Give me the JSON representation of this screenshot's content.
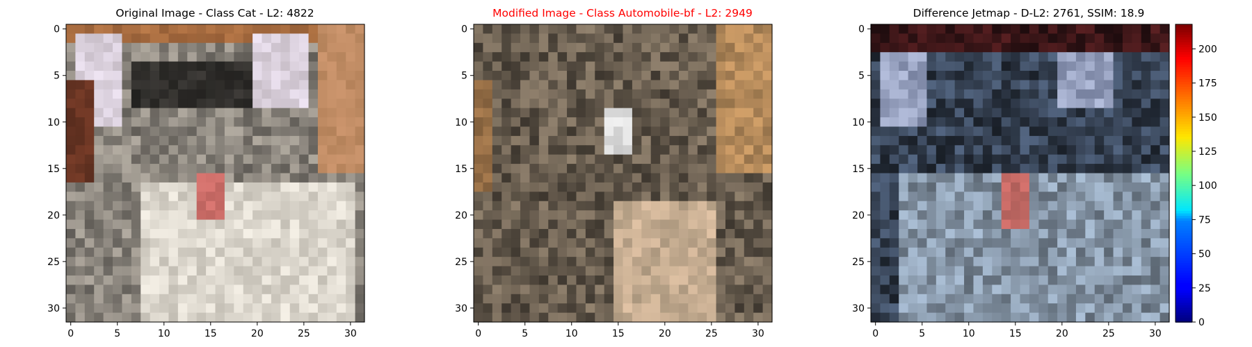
{
  "panels": [
    {
      "title": "Original Image - Class Cat - L2: 4822",
      "title_color": "#000000"
    },
    {
      "title": "Modified Image - Class Automobile-bf - L2: 2949",
      "title_color": "#ff0000"
    },
    {
      "title": "Difference Jetmap - D-L2: 2761, SSIM: 18.9",
      "title_color": "#000000"
    }
  ],
  "chart_data": [
    {
      "type": "heatmap",
      "title": "Original Image - Class Cat - L2: 4822",
      "image_size": [
        32,
        32
      ],
      "xlim": [
        -0.5,
        31.5
      ],
      "ylim": [
        31.5,
        -0.5
      ],
      "xticks": [
        0,
        5,
        10,
        15,
        20,
        25,
        30
      ],
      "yticks": [
        0,
        5,
        10,
        15,
        20,
        25,
        30
      ]
    },
    {
      "type": "heatmap",
      "title": "Modified Image - Class Automobile-bf - L2: 2949",
      "image_size": [
        32,
        32
      ],
      "xlim": [
        -0.5,
        31.5
      ],
      "ylim": [
        31.5,
        -0.5
      ],
      "xticks": [
        0,
        5,
        10,
        15,
        20,
        25,
        30
      ],
      "yticks": [
        0,
        5,
        10,
        15,
        20,
        25,
        30
      ]
    },
    {
      "type": "heatmap",
      "title": "Difference Jetmap - D-L2: 2761, SSIM: 18.9",
      "image_size": [
        32,
        32
      ],
      "xlim": [
        -0.5,
        31.5
      ],
      "ylim": [
        31.5,
        -0.5
      ],
      "xticks": [
        0,
        5,
        10,
        15,
        20,
        25,
        30
      ],
      "yticks": [
        0,
        5,
        10,
        15,
        20,
        25,
        30
      ],
      "colorbar": {
        "colormap": "jet",
        "range": [
          0,
          218
        ],
        "ticks": [
          0,
          25,
          50,
          75,
          100,
          125,
          150,
          175,
          200
        ]
      }
    }
  ]
}
